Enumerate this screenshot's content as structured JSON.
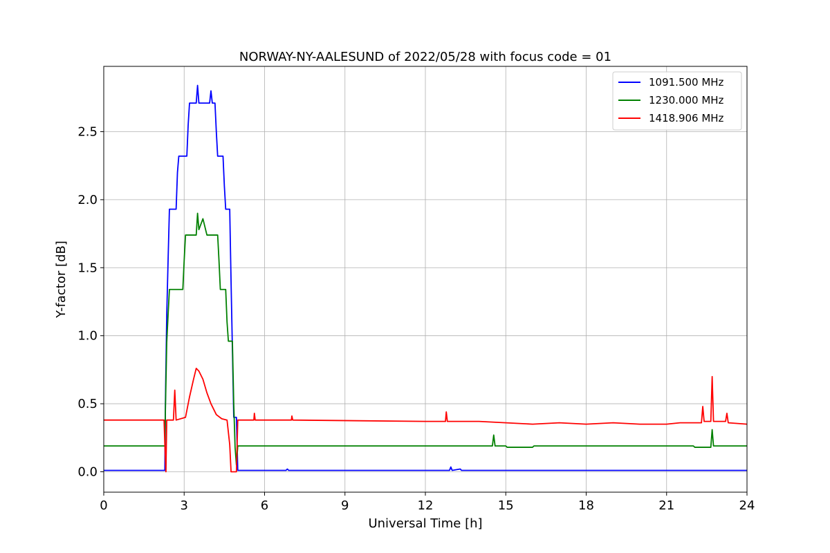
{
  "chart_data": {
    "type": "line",
    "title": "NORWAY-NY-AALESUND of 2022/05/28 with focus code = 01",
    "xlabel": "Universal Time [h]",
    "ylabel": "Y-factor [dB]",
    "xlim": [
      0,
      24
    ],
    "ylim": [
      -0.15,
      2.98
    ],
    "xticks": [
      0,
      3,
      6,
      9,
      12,
      15,
      18,
      21,
      24
    ],
    "xtick_labels": [
      "0",
      "3",
      "6",
      "9",
      "12",
      "15",
      "18",
      "21",
      "24"
    ],
    "yticks": [
      0.0,
      0.5,
      1.0,
      1.5,
      2.0,
      2.5
    ],
    "ytick_labels": [
      "0.0",
      "0.5",
      "1.0",
      "1.5",
      "2.0",
      "2.5"
    ],
    "grid": true,
    "legend_position": "top-right",
    "series": [
      {
        "name": "1091.500 MHz",
        "color": "#0000ff",
        "points": [
          [
            0,
            0.01
          ],
          [
            2.28,
            0.01
          ],
          [
            2.3,
            0.5
          ],
          [
            2.35,
            1.15
          ],
          [
            2.4,
            1.55
          ],
          [
            2.45,
            1.93
          ],
          [
            2.7,
            1.93
          ],
          [
            2.75,
            2.2
          ],
          [
            2.8,
            2.32
          ],
          [
            3.1,
            2.32
          ],
          [
            3.15,
            2.55
          ],
          [
            3.2,
            2.71
          ],
          [
            3.45,
            2.71
          ],
          [
            3.5,
            2.84
          ],
          [
            3.55,
            2.71
          ],
          [
            3.95,
            2.71
          ],
          [
            4.0,
            2.8
          ],
          [
            4.05,
            2.71
          ],
          [
            4.15,
            2.71
          ],
          [
            4.2,
            2.5
          ],
          [
            4.25,
            2.32
          ],
          [
            4.45,
            2.32
          ],
          [
            4.5,
            2.1
          ],
          [
            4.55,
            1.93
          ],
          [
            4.7,
            1.93
          ],
          [
            4.75,
            1.4
          ],
          [
            4.8,
            0.9
          ],
          [
            4.85,
            0.4
          ],
          [
            4.95,
            0.4
          ],
          [
            5.0,
            0.01
          ],
          [
            6.8,
            0.01
          ],
          [
            6.85,
            0.02
          ],
          [
            6.9,
            0.01
          ],
          [
            12.9,
            0.01
          ],
          [
            12.95,
            0.035
          ],
          [
            13.0,
            0.01
          ],
          [
            13.3,
            0.02
          ],
          [
            13.35,
            0.01
          ],
          [
            24,
            0.01
          ]
        ]
      },
      {
        "name": "1230.000 MHz",
        "color": "#008000",
        "points": [
          [
            0,
            0.19
          ],
          [
            2.28,
            0.19
          ],
          [
            2.3,
            0.45
          ],
          [
            2.35,
            0.95
          ],
          [
            2.4,
            1.15
          ],
          [
            2.45,
            1.34
          ],
          [
            2.95,
            1.34
          ],
          [
            3.0,
            1.55
          ],
          [
            3.05,
            1.74
          ],
          [
            3.45,
            1.74
          ],
          [
            3.5,
            1.9
          ],
          [
            3.55,
            1.78
          ],
          [
            3.7,
            1.86
          ],
          [
            3.85,
            1.74
          ],
          [
            4.25,
            1.74
          ],
          [
            4.3,
            1.55
          ],
          [
            4.35,
            1.34
          ],
          [
            4.55,
            1.34
          ],
          [
            4.6,
            1.1
          ],
          [
            4.65,
            0.96
          ],
          [
            4.8,
            0.96
          ],
          [
            4.85,
            0.5
          ],
          [
            4.9,
            0.18
          ],
          [
            4.95,
            0.05
          ],
          [
            5.0,
            0.19
          ],
          [
            14.5,
            0.19
          ],
          [
            14.55,
            0.27
          ],
          [
            14.6,
            0.19
          ],
          [
            15.0,
            0.19
          ],
          [
            15.05,
            0.18
          ],
          [
            16.0,
            0.18
          ],
          [
            16.05,
            0.19
          ],
          [
            22.0,
            0.19
          ],
          [
            22.05,
            0.18
          ],
          [
            22.65,
            0.18
          ],
          [
            22.7,
            0.31
          ],
          [
            22.75,
            0.19
          ],
          [
            24,
            0.19
          ]
        ]
      },
      {
        "name": "1418.906 MHz",
        "color": "#ff0000",
        "points": [
          [
            0,
            0.38
          ],
          [
            2.25,
            0.38
          ],
          [
            2.28,
            0.2
          ],
          [
            2.32,
            0.0
          ],
          [
            2.35,
            0.38
          ],
          [
            2.6,
            0.38
          ],
          [
            2.65,
            0.6
          ],
          [
            2.7,
            0.38
          ],
          [
            3.05,
            0.4
          ],
          [
            3.2,
            0.55
          ],
          [
            3.35,
            0.68
          ],
          [
            3.45,
            0.76
          ],
          [
            3.55,
            0.74
          ],
          [
            3.7,
            0.68
          ],
          [
            3.85,
            0.58
          ],
          [
            4.0,
            0.5
          ],
          [
            4.2,
            0.42
          ],
          [
            4.4,
            0.39
          ],
          [
            4.6,
            0.38
          ],
          [
            4.7,
            0.2
          ],
          [
            4.75,
            0.0
          ],
          [
            4.95,
            0.0
          ],
          [
            5.0,
            0.38
          ],
          [
            5.6,
            0.38
          ],
          [
            5.62,
            0.43
          ],
          [
            5.65,
            0.38
          ],
          [
            7.0,
            0.38
          ],
          [
            7.02,
            0.41
          ],
          [
            7.05,
            0.38
          ],
          [
            12.0,
            0.37
          ],
          [
            12.75,
            0.37
          ],
          [
            12.78,
            0.44
          ],
          [
            12.82,
            0.37
          ],
          [
            14.0,
            0.37
          ],
          [
            15.0,
            0.36
          ],
          [
            16.0,
            0.35
          ],
          [
            17.0,
            0.36
          ],
          [
            18.0,
            0.35
          ],
          [
            19.0,
            0.36
          ],
          [
            20.0,
            0.35
          ],
          [
            21.0,
            0.35
          ],
          [
            21.5,
            0.36
          ],
          [
            22.3,
            0.36
          ],
          [
            22.35,
            0.48
          ],
          [
            22.4,
            0.37
          ],
          [
            22.65,
            0.37
          ],
          [
            22.7,
            0.7
          ],
          [
            22.75,
            0.37
          ],
          [
            23.2,
            0.37
          ],
          [
            23.25,
            0.43
          ],
          [
            23.3,
            0.36
          ],
          [
            24,
            0.35
          ]
        ]
      }
    ]
  }
}
